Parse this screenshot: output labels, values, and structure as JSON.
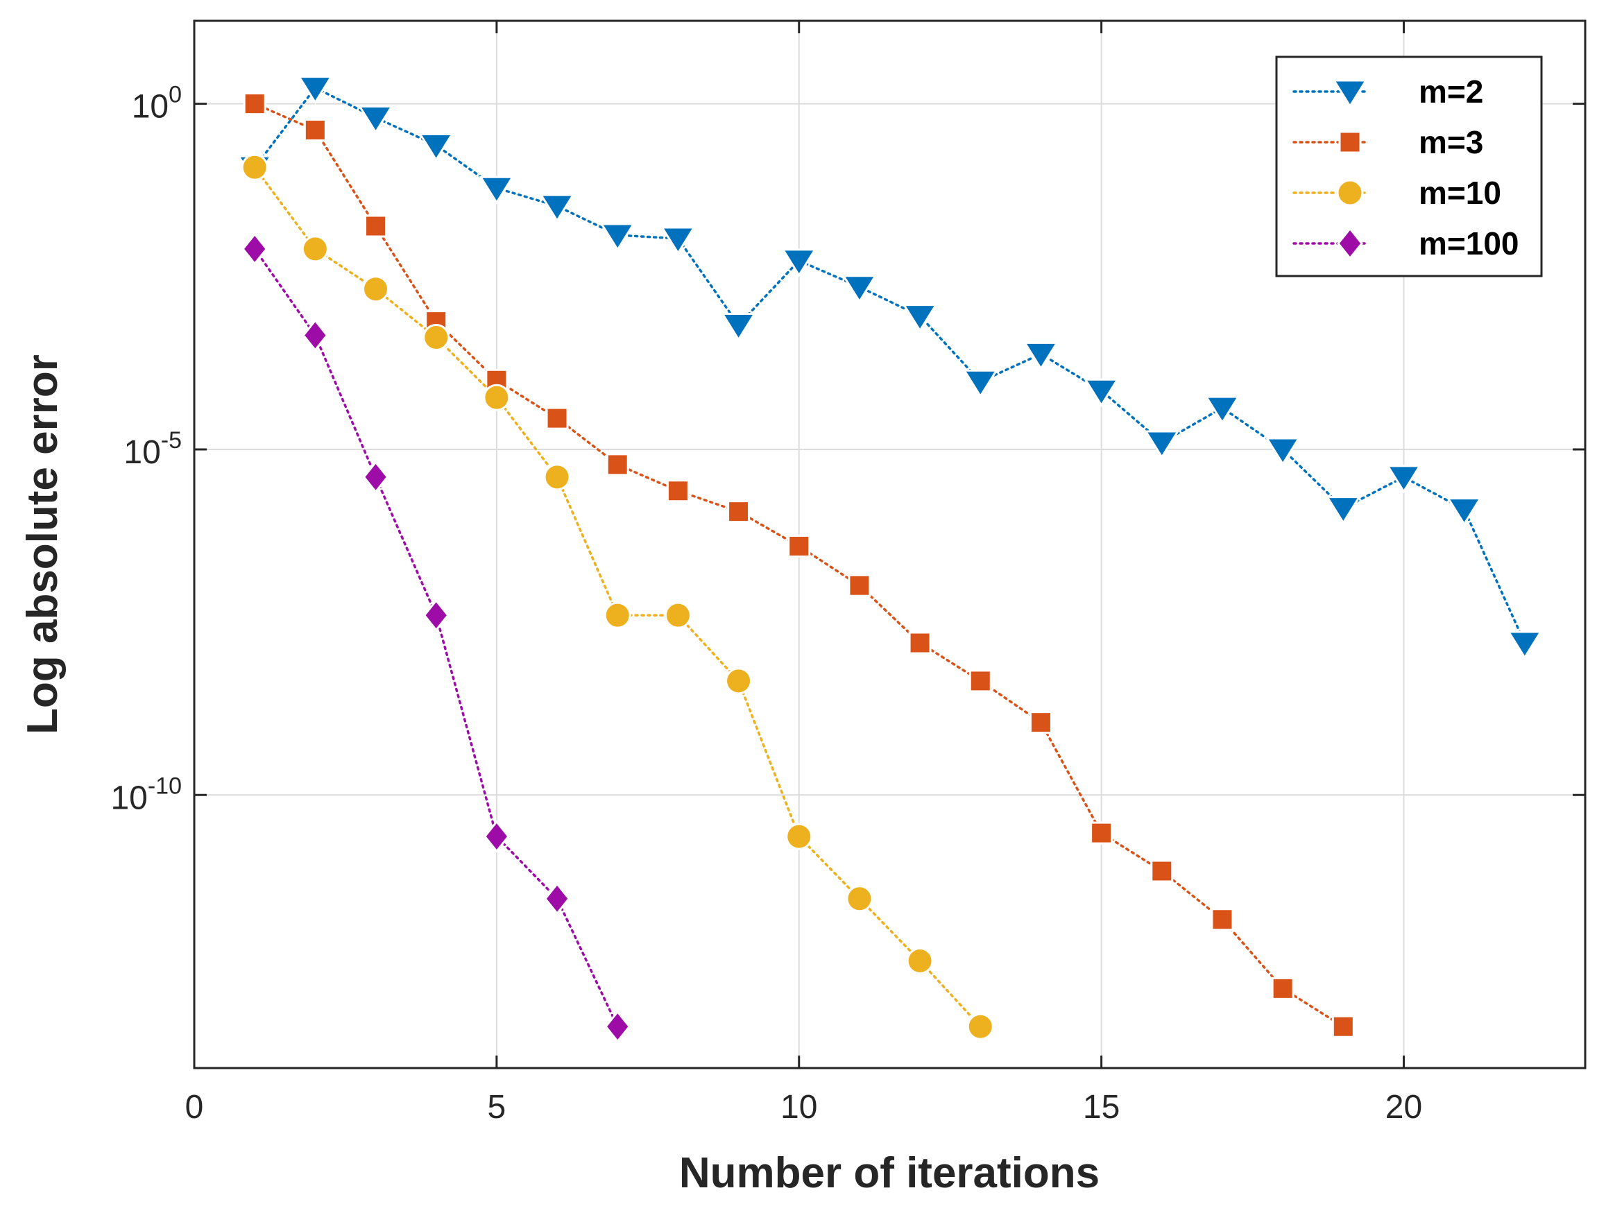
{
  "chart_data": {
    "type": "line",
    "title": "",
    "xlabel": "Number of iterations",
    "ylabel": "Log absolute error",
    "x_scale": "linear",
    "y_scale": "log",
    "xlim": [
      0,
      23
    ],
    "ylim_log10": [
      -13.95,
      1.2
    ],
    "xticks": [
      0,
      5,
      10,
      15,
      20
    ],
    "xtick_labels": [
      "0",
      "5",
      "10",
      "15",
      "20"
    ],
    "yticks_log10": [
      0,
      -5,
      -10
    ],
    "ytick_labels": [
      {
        "base": "10",
        "exp": "0"
      },
      {
        "base": "10",
        "exp": "-5"
      },
      {
        "base": "10",
        "exp": "-10"
      }
    ],
    "grid": true,
    "legend_position": "top-right",
    "series": [
      {
        "name": "m=2",
        "color": "#0072BD",
        "marker": "triangle-down",
        "line_style": "dotted",
        "x": [
          1,
          2,
          3,
          4,
          5,
          6,
          7,
          8,
          9,
          10,
          11,
          12,
          13,
          14,
          15,
          16,
          17,
          18,
          19,
          20,
          21,
          22
        ],
        "log10_y": [
          -0.92,
          0.23,
          -0.2,
          -0.6,
          -1.22,
          -1.48,
          -1.9,
          -1.95,
          -3.2,
          -2.27,
          -2.65,
          -3.07,
          -4.02,
          -3.62,
          -4.15,
          -4.9,
          -4.4,
          -5.0,
          -5.85,
          -5.4,
          -5.87,
          -7.8
        ]
      },
      {
        "name": "m=3",
        "color": "#D95319",
        "marker": "square",
        "line_style": "dotted",
        "x": [
          1,
          2,
          3,
          4,
          5,
          6,
          7,
          8,
          9,
          10,
          11,
          12,
          13,
          14,
          15,
          16,
          17,
          18,
          19
        ],
        "log10_y": [
          0.0,
          -0.38,
          -1.77,
          -3.15,
          -4.0,
          -4.55,
          -5.22,
          -5.6,
          -5.9,
          -6.4,
          -6.97,
          -7.8,
          -8.35,
          -8.95,
          -10.55,
          -11.1,
          -11.8,
          -12.8,
          -13.35
        ]
      },
      {
        "name": "m=10",
        "color": "#EDB120",
        "marker": "circle",
        "line_style": "dotted",
        "x": [
          1,
          2,
          3,
          4,
          5,
          6,
          7,
          8,
          9,
          10,
          11,
          12,
          13
        ],
        "log10_y": [
          -0.92,
          -2.1,
          -2.68,
          -3.38,
          -4.25,
          -5.4,
          -7.4,
          -7.4,
          -8.35,
          -10.6,
          -11.5,
          -12.4,
          -13.35
        ]
      },
      {
        "name": "m=100",
        "color": "#9E0CA8",
        "marker": "diamond",
        "line_style": "dotted",
        "x": [
          1,
          2,
          3,
          4,
          5,
          6,
          7
        ],
        "log10_y": [
          -2.1,
          -3.35,
          -5.4,
          -7.4,
          -10.6,
          -11.5,
          -13.35
        ]
      }
    ]
  }
}
